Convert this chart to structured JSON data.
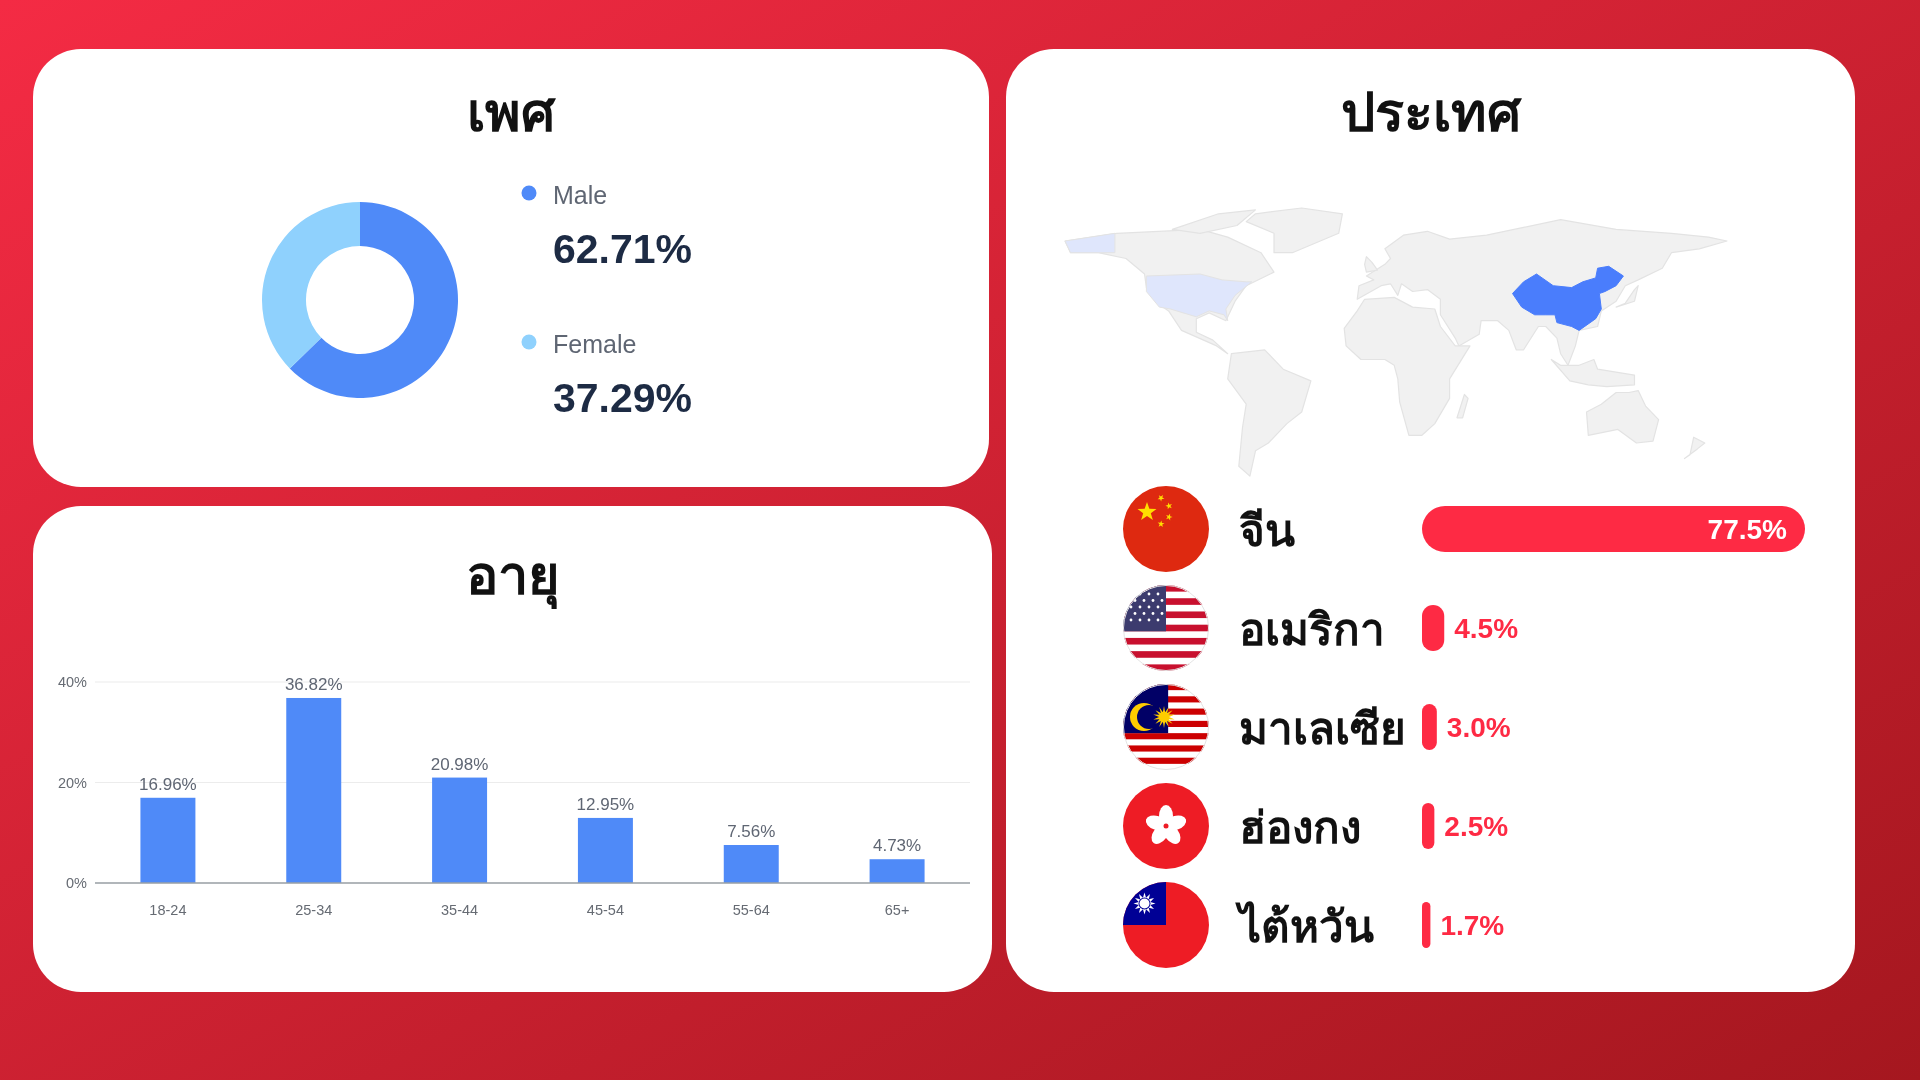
{
  "chart_data": [
    {
      "type": "donut",
      "title": "เพศ",
      "categories": [
        "Male",
        "Female"
      ],
      "values": [
        62.71,
        37.29
      ],
      "colors": [
        "#4f8af8",
        "#8fd1fd"
      ],
      "value_labels": [
        "62.71%",
        "37.29%"
      ],
      "legend": "right"
    },
    {
      "type": "bar",
      "title": "อายุ",
      "categories": [
        "18-24",
        "25-34",
        "35-44",
        "45-54",
        "55-64",
        "65+"
      ],
      "values": [
        16.96,
        36.82,
        20.98,
        12.95,
        7.56,
        4.73
      ],
      "color": "#4f8af8",
      "value_labels": [
        "16.96%",
        "36.82%",
        "20.98%",
        "12.95%",
        "7.56%",
        "4.73%"
      ],
      "ylim": [
        0,
        40
      ],
      "yticks": [
        {
          "value": 0,
          "label": "0%"
        },
        {
          "value": 20,
          "label": "20%"
        },
        {
          "value": 40,
          "label": "40%"
        }
      ],
      "grid": "y"
    },
    {
      "type": "bar",
      "orientation": "horizontal",
      "title": "ประเทศ",
      "categories": [
        "จีน",
        "อเมริกา",
        "มาเลเซีย",
        "ฮ่องกง",
        "ไต้หวัน"
      ],
      "values": [
        77.5,
        4.5,
        3.0,
        2.5,
        1.7
      ],
      "color": "#fe2a44",
      "value_labels": [
        "77.5%",
        "4.5%",
        "3.0%",
        "2.5%",
        "1.7%"
      ],
      "tick_labels": "y"
    }
  ]
}
